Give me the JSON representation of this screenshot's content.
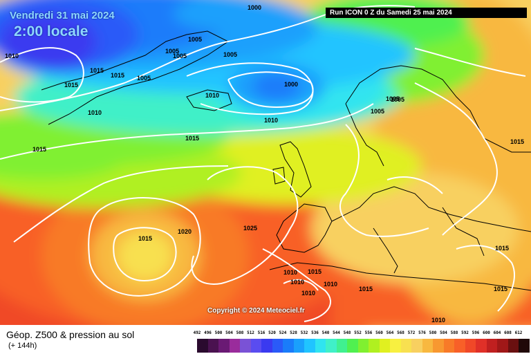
{
  "header": {
    "date": "Vendredi 31 mai 2024",
    "local_time": "2:00 locale",
    "run_info": "Run ICON 0 Z du Samedi 25 mai 2024",
    "copyright": "Copyright © 2024 Meteociel.fr"
  },
  "footer": {
    "title": "Géop. Z500 & pression au sol",
    "lead_time": "(+ 144h)"
  },
  "legend": {
    "values": [
      "492",
      "496",
      "500",
      "504",
      "508",
      "512",
      "516",
      "520",
      "524",
      "528",
      "532",
      "536",
      "540",
      "544",
      "548",
      "552",
      "556",
      "560",
      "564",
      "568",
      "572",
      "576",
      "580",
      "584",
      "588",
      "592",
      "596",
      "600",
      "604",
      "608",
      "612"
    ],
    "colors": [
      "#2a0a2e",
      "#4a1250",
      "#6a1a74",
      "#9a2c9c",
      "#7a52d6",
      "#5a4cf0",
      "#3a3af0",
      "#2a5af8",
      "#1a7cfa",
      "#1aa0fc",
      "#20c4ff",
      "#30e4f0",
      "#40f0c8",
      "#40f090",
      "#50f050",
      "#80f030",
      "#b0f020",
      "#e0f020",
      "#f8f040",
      "#f8e050",
      "#f8d060",
      "#f8b840",
      "#f89830",
      "#f87a28",
      "#f86028",
      "#f04828",
      "#e03028",
      "#c02020",
      "#a01818",
      "#6a1010",
      "#200808"
    ]
  },
  "map": {
    "isobar_labels": [
      {
        "text": "1000"
      },
      {
        "text": "1000"
      },
      {
        "text": "1005"
      },
      {
        "text": "1005"
      },
      {
        "text": "1005"
      },
      {
        "text": "1005"
      },
      {
        "text": "1005"
      },
      {
        "text": "1005"
      },
      {
        "text": "1005"
      },
      {
        "text": "1005"
      },
      {
        "text": "1010"
      },
      {
        "text": "1010"
      },
      {
        "text": "1010"
      },
      {
        "text": "1010"
      },
      {
        "text": "1010"
      },
      {
        "text": "1010"
      },
      {
        "text": "1010"
      },
      {
        "text": "1010"
      },
      {
        "text": "1010"
      },
      {
        "text": "1015"
      },
      {
        "text": "1015"
      },
      {
        "text": "1015"
      },
      {
        "text": "1015"
      },
      {
        "text": "1015"
      },
      {
        "text": "1015"
      },
      {
        "text": "1015"
      },
      {
        "text": "1015"
      },
      {
        "text": "1015"
      },
      {
        "text": "1015"
      },
      {
        "text": "1015"
      },
      {
        "text": "1020"
      },
      {
        "text": "1025"
      }
    ]
  }
}
